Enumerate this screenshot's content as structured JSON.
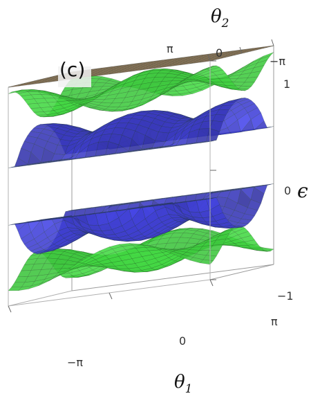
{
  "panel_label": "(c)",
  "axes": {
    "theta1": {
      "label": "θ",
      "sub": "1",
      "ticks": [
        "−π",
        "0",
        "π"
      ]
    },
    "theta2": {
      "label": "θ",
      "sub": "2",
      "ticks": [
        "π",
        "0",
        "−π"
      ]
    },
    "epsilon": {
      "label": "ϵ",
      "ticks": [
        "1",
        "0",
        "−1"
      ]
    }
  },
  "colors": {
    "outer_band": "#3fcf3f",
    "inner_band": "#3a3ac4",
    "flat_band": "#e08a6a",
    "mesh": "#1f3a1f"
  },
  "chart_data": {
    "type": "surface3d",
    "title": "",
    "xlabel": "θ1",
    "ylabel": "θ2",
    "zlabel": "ϵ",
    "xlim": [
      -3.14159,
      3.14159
    ],
    "ylim": [
      -3.14159,
      3.14159
    ],
    "zlim": [
      -1,
      1
    ],
    "grid": false,
    "series": [
      {
        "band": "flat",
        "level": 1.0,
        "color": "#e08a6a"
      },
      {
        "band": "upper-outer",
        "color": "#3fcf3f"
      },
      {
        "band": "upper-inner",
        "color": "#3a3ac4"
      },
      {
        "band": "lower-inner",
        "color": "#3a3ac4"
      },
      {
        "band": "lower-outer",
        "color": "#3fcf3f"
      }
    ]
  }
}
